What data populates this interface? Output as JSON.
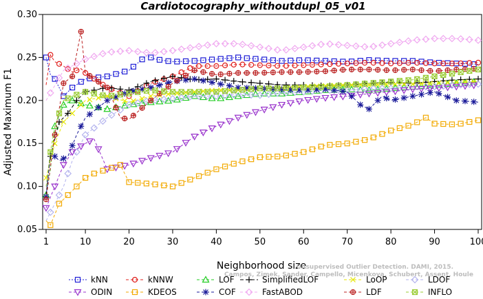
{
  "chart_data": {
    "type": "line",
    "title": "Cardiotocography_withoutdupl_05_v01",
    "xlabel": "Neighborhood size",
    "ylabel": "Adjusted Maximum F1",
    "xlim": [
      1,
      100
    ],
    "ylim": [
      0.05,
      0.3
    ],
    "xticks": [
      1,
      10,
      20,
      30,
      40,
      50,
      60,
      70,
      80,
      90,
      100
    ],
    "yticks": [
      0.05,
      0.1,
      0.15,
      0.2,
      0.25,
      0.3
    ],
    "ytick_labels": [
      "0.05",
      "0.10",
      "0.15",
      "0.20",
      "0.25",
      "0.30"
    ],
    "grid": false,
    "legend_placement": "bottom",
    "watermark": [
      "Unsupervised Outlier Detection. DAMI, 2015.",
      "Campos, Zimek, Sander, Campello, Micenkova, Schubert, Assent, Houle"
    ],
    "series": [
      {
        "name": "kNN",
        "color": "#1f1fd6",
        "marker": "square",
        "dash": "2,2",
        "points": [
          [
            1,
            0.25
          ],
          [
            2,
            0.23
          ],
          [
            3,
            0.225
          ],
          [
            5,
            0.205
          ],
          [
            7,
            0.215
          ],
          [
            10,
            0.225
          ],
          [
            15,
            0.228
          ],
          [
            20,
            0.235
          ],
          [
            24,
            0.252
          ],
          [
            26,
            0.248
          ],
          [
            30,
            0.245
          ],
          [
            35,
            0.246
          ],
          [
            40,
            0.248
          ],
          [
            45,
            0.25
          ],
          [
            50,
            0.248
          ],
          [
            55,
            0.246
          ],
          [
            60,
            0.247
          ],
          [
            65,
            0.246
          ],
          [
            70,
            0.245
          ],
          [
            75,
            0.247
          ],
          [
            80,
            0.246
          ],
          [
            85,
            0.246
          ],
          [
            90,
            0.244
          ],
          [
            95,
            0.243
          ],
          [
            100,
            0.242
          ]
        ]
      },
      {
        "name": "kNNW",
        "color": "#e0201d",
        "marker": "circle",
        "dash": "4,3",
        "points": [
          [
            1,
            0.218
          ],
          [
            2,
            0.253
          ],
          [
            3,
            0.245
          ],
          [
            5,
            0.24
          ],
          [
            7,
            0.233
          ],
          [
            9,
            0.237
          ],
          [
            10,
            0.232
          ],
          [
            15,
            0.215
          ],
          [
            20,
            0.205
          ],
          [
            25,
            0.22
          ],
          [
            30,
            0.228
          ],
          [
            35,
            0.24
          ],
          [
            40,
            0.24
          ],
          [
            45,
            0.242
          ],
          [
            50,
            0.241
          ],
          [
            55,
            0.24
          ],
          [
            60,
            0.241
          ],
          [
            65,
            0.242
          ],
          [
            70,
            0.243
          ],
          [
            75,
            0.244
          ],
          [
            80,
            0.243
          ],
          [
            85,
            0.244
          ],
          [
            90,
            0.243
          ],
          [
            95,
            0.243
          ],
          [
            100,
            0.244
          ]
        ]
      },
      {
        "name": "LOF",
        "color": "#22cc22",
        "marker": "triangle",
        "dash": "4,3",
        "points": [
          [
            1,
            0.09
          ],
          [
            2,
            0.12
          ],
          [
            3,
            0.17
          ],
          [
            5,
            0.195
          ],
          [
            7,
            0.2
          ],
          [
            10,
            0.195
          ],
          [
            15,
            0.19
          ],
          [
            20,
            0.195
          ],
          [
            25,
            0.198
          ],
          [
            30,
            0.2
          ],
          [
            35,
            0.205
          ],
          [
            40,
            0.202
          ],
          [
            45,
            0.205
          ],
          [
            50,
            0.208
          ],
          [
            55,
            0.208
          ],
          [
            60,
            0.21
          ],
          [
            65,
            0.212
          ],
          [
            70,
            0.213
          ],
          [
            75,
            0.212
          ],
          [
            80,
            0.214
          ],
          [
            85,
            0.216
          ],
          [
            90,
            0.218
          ],
          [
            95,
            0.22
          ],
          [
            100,
            0.222
          ]
        ]
      },
      {
        "name": "SimplifiedLOF",
        "color": "#000000",
        "marker": "plus",
        "dash": "5,3",
        "points": [
          [
            1,
            0.09
          ],
          [
            2,
            0.135
          ],
          [
            3,
            0.155
          ],
          [
            4,
            0.175
          ],
          [
            6,
            0.185
          ],
          [
            8,
            0.2
          ],
          [
            10,
            0.21
          ],
          [
            15,
            0.215
          ],
          [
            20,
            0.212
          ],
          [
            25,
            0.222
          ],
          [
            30,
            0.228
          ],
          [
            35,
            0.224
          ],
          [
            40,
            0.225
          ],
          [
            45,
            0.222
          ],
          [
            50,
            0.22
          ],
          [
            55,
            0.218
          ],
          [
            60,
            0.218
          ],
          [
            65,
            0.217
          ],
          [
            70,
            0.218
          ],
          [
            75,
            0.22
          ],
          [
            80,
            0.221
          ],
          [
            85,
            0.22
          ],
          [
            90,
            0.222
          ],
          [
            95,
            0.224
          ],
          [
            100,
            0.225
          ]
        ]
      },
      {
        "name": "LoOP",
        "color": "#e6e600",
        "marker": "x",
        "dash": "4,3",
        "points": [
          [
            1,
            0.11
          ],
          [
            3,
            0.15
          ],
          [
            5,
            0.175
          ],
          [
            8,
            0.19
          ],
          [
            10,
            0.2
          ],
          [
            15,
            0.205
          ],
          [
            20,
            0.198
          ],
          [
            25,
            0.205
          ],
          [
            30,
            0.208
          ],
          [
            35,
            0.21
          ],
          [
            40,
            0.212
          ],
          [
            45,
            0.212
          ],
          [
            50,
            0.214
          ],
          [
            55,
            0.214
          ],
          [
            60,
            0.216
          ],
          [
            65,
            0.217
          ],
          [
            70,
            0.218
          ],
          [
            75,
            0.218
          ],
          [
            80,
            0.219
          ],
          [
            85,
            0.219
          ],
          [
            90,
            0.22
          ],
          [
            95,
            0.221
          ],
          [
            100,
            0.222
          ]
        ]
      },
      {
        "name": "LDOF",
        "color": "#b3b3ee",
        "marker": "diamond",
        "dash": "4,3",
        "points": [
          [
            1,
            0.06
          ],
          [
            3,
            0.08
          ],
          [
            5,
            0.1
          ],
          [
            7,
            0.13
          ],
          [
            10,
            0.16
          ],
          [
            15,
            0.18
          ],
          [
            20,
            0.195
          ],
          [
            25,
            0.2
          ],
          [
            30,
            0.202
          ],
          [
            35,
            0.205
          ],
          [
            40,
            0.205
          ],
          [
            45,
            0.207
          ],
          [
            50,
            0.206
          ],
          [
            55,
            0.209
          ],
          [
            60,
            0.21
          ],
          [
            65,
            0.212
          ],
          [
            70,
            0.212
          ],
          [
            75,
            0.214
          ],
          [
            80,
            0.214
          ],
          [
            85,
            0.216
          ],
          [
            90,
            0.216
          ],
          [
            95,
            0.218
          ],
          [
            100,
            0.219
          ]
        ]
      },
      {
        "name": "ODIN",
        "color": "#9933cc",
        "marker": "triangle-down",
        "dash": "4,3",
        "points": [
          [
            1,
            0.075
          ],
          [
            3,
            0.1
          ],
          [
            5,
            0.125
          ],
          [
            7,
            0.14
          ],
          [
            10,
            0.15
          ],
          [
            12,
            0.155
          ],
          [
            15,
            0.12
          ],
          [
            20,
            0.125
          ],
          [
            25,
            0.133
          ],
          [
            30,
            0.14
          ],
          [
            35,
            0.158
          ],
          [
            40,
            0.17
          ],
          [
            45,
            0.18
          ],
          [
            50,
            0.188
          ],
          [
            55,
            0.195
          ],
          [
            60,
            0.2
          ],
          [
            65,
            0.203
          ],
          [
            70,
            0.205
          ],
          [
            75,
            0.208
          ],
          [
            80,
            0.21
          ],
          [
            85,
            0.213
          ],
          [
            90,
            0.214
          ],
          [
            95,
            0.216
          ],
          [
            100,
            0.218
          ]
        ]
      },
      {
        "name": "KDEOS",
        "color": "#f2a900",
        "marker": "square",
        "dash": "4,3",
        "points": [
          [
            1,
            0.06
          ],
          [
            2,
            0.055
          ],
          [
            4,
            0.08
          ],
          [
            6,
            0.09
          ],
          [
            8,
            0.1
          ],
          [
            10,
            0.11
          ],
          [
            12,
            0.115
          ],
          [
            15,
            0.12
          ],
          [
            18,
            0.125
          ],
          [
            20,
            0.105
          ],
          [
            25,
            0.103
          ],
          [
            30,
            0.1
          ],
          [
            35,
            0.11
          ],
          [
            40,
            0.12
          ],
          [
            45,
            0.128
          ],
          [
            50,
            0.134
          ],
          [
            55,
            0.135
          ],
          [
            60,
            0.14
          ],
          [
            65,
            0.148
          ],
          [
            70,
            0.15
          ],
          [
            75,
            0.155
          ],
          [
            80,
            0.165
          ],
          [
            85,
            0.172
          ],
          [
            88,
            0.18
          ],
          [
            90,
            0.173
          ],
          [
            95,
            0.172
          ],
          [
            100,
            0.177
          ]
        ]
      },
      {
        "name": "COF",
        "color": "#1a1a99",
        "marker": "star",
        "dash": "4,3",
        "points": [
          [
            1,
            0.088
          ],
          [
            2,
            0.14
          ],
          [
            4,
            0.13
          ],
          [
            6,
            0.135
          ],
          [
            8,
            0.16
          ],
          [
            10,
            0.18
          ],
          [
            15,
            0.2
          ],
          [
            20,
            0.21
          ],
          [
            25,
            0.215
          ],
          [
            30,
            0.222
          ],
          [
            35,
            0.225
          ],
          [
            40,
            0.22
          ],
          [
            45,
            0.215
          ],
          [
            50,
            0.214
          ],
          [
            55,
            0.213
          ],
          [
            60,
            0.212
          ],
          [
            65,
            0.213
          ],
          [
            70,
            0.21
          ],
          [
            73,
            0.195
          ],
          [
            75,
            0.19
          ],
          [
            78,
            0.205
          ],
          [
            80,
            0.2
          ],
          [
            85,
            0.205
          ],
          [
            90,
            0.21
          ],
          [
            95,
            0.2
          ],
          [
            100,
            0.198
          ]
        ]
      },
      {
        "name": "FastABOD",
        "color": "#f0a8f0",
        "marker": "diamond",
        "dash": "4,3",
        "points": [
          [
            1,
            0.2
          ],
          [
            5,
            0.235
          ],
          [
            10,
            0.248
          ],
          [
            15,
            0.256
          ],
          [
            20,
            0.258
          ],
          [
            25,
            0.255
          ],
          [
            30,
            0.258
          ],
          [
            35,
            0.262
          ],
          [
            40,
            0.266
          ],
          [
            45,
            0.266
          ],
          [
            50,
            0.262
          ],
          [
            55,
            0.258
          ],
          [
            60,
            0.262
          ],
          [
            65,
            0.266
          ],
          [
            70,
            0.264
          ],
          [
            75,
            0.262
          ],
          [
            80,
            0.266
          ],
          [
            85,
            0.27
          ],
          [
            90,
            0.272
          ],
          [
            95,
            0.272
          ],
          [
            100,
            0.27
          ]
        ]
      },
      {
        "name": "LDF",
        "color": "#bb2222",
        "marker": "circle-plus",
        "dash": "4,3",
        "points": [
          [
            1,
            0.085
          ],
          [
            3,
            0.16
          ],
          [
            5,
            0.22
          ],
          [
            7,
            0.228
          ],
          [
            9,
            0.28
          ],
          [
            10,
            0.232
          ],
          [
            15,
            0.215
          ],
          [
            18,
            0.18
          ],
          [
            20,
            0.178
          ],
          [
            25,
            0.2
          ],
          [
            30,
            0.22
          ],
          [
            35,
            0.235
          ],
          [
            40,
            0.23
          ],
          [
            45,
            0.232
          ],
          [
            50,
            0.232
          ],
          [
            55,
            0.233
          ],
          [
            60,
            0.233
          ],
          [
            65,
            0.234
          ],
          [
            70,
            0.236
          ],
          [
            75,
            0.236
          ],
          [
            80,
            0.235
          ],
          [
            85,
            0.236
          ],
          [
            90,
            0.234
          ],
          [
            95,
            0.236
          ],
          [
            100,
            0.237
          ]
        ]
      },
      {
        "name": "INFLO",
        "color": "#99cc33",
        "marker": "square-x",
        "dash": "4,3",
        "points": [
          [
            1,
            0.1
          ],
          [
            2,
            0.14
          ],
          [
            3,
            0.17
          ],
          [
            5,
            0.2
          ],
          [
            7,
            0.205
          ],
          [
            10,
            0.21
          ],
          [
            15,
            0.205
          ],
          [
            20,
            0.208
          ],
          [
            25,
            0.212
          ],
          [
            30,
            0.21
          ],
          [
            35,
            0.21
          ],
          [
            40,
            0.21
          ],
          [
            45,
            0.212
          ],
          [
            50,
            0.214
          ],
          [
            55,
            0.214
          ],
          [
            60,
            0.215
          ],
          [
            65,
            0.216
          ],
          [
            70,
            0.218
          ],
          [
            75,
            0.22
          ],
          [
            80,
            0.222
          ],
          [
            85,
            0.224
          ],
          [
            90,
            0.228
          ],
          [
            95,
            0.232
          ],
          [
            100,
            0.236
          ]
        ]
      }
    ]
  }
}
